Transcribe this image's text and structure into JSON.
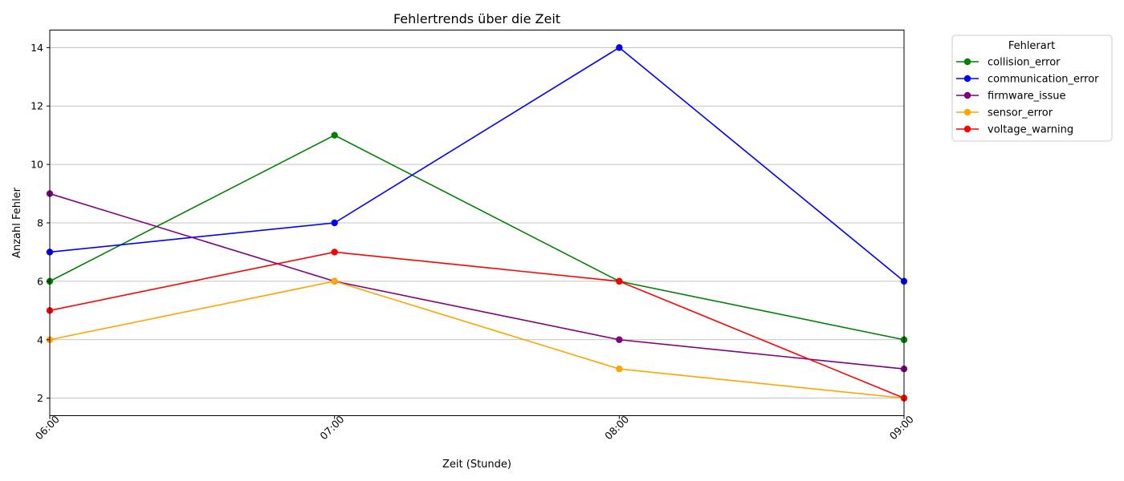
{
  "chart_data": {
    "type": "line",
    "title": "Fehlertrends über die Zeit",
    "xlabel": "Zeit (Stunde)",
    "ylabel": "Anzahl Fehler",
    "categories": [
      "06:00",
      "07:00",
      "08:00",
      "09:00"
    ],
    "ylim": [
      1.4,
      14.6
    ],
    "yticks": [
      2,
      4,
      6,
      8,
      10,
      12,
      14
    ],
    "grid": "horizontal",
    "legend": {
      "title": "Fehlerart",
      "placement": "outside top-right"
    },
    "series": [
      {
        "name": "collision_error",
        "color": "#008000",
        "values": [
          6,
          11,
          6,
          4
        ]
      },
      {
        "name": "communication_error",
        "color": "#0000ff",
        "values": [
          7,
          8,
          14,
          6
        ]
      },
      {
        "name": "firmware_issue",
        "color": "#800080",
        "values": [
          9,
          6,
          4,
          3
        ]
      },
      {
        "name": "sensor_error",
        "color": "#ffa500",
        "values": [
          4,
          6,
          3,
          2
        ]
      },
      {
        "name": "voltage_warning",
        "color": "#ff0000",
        "values": [
          5,
          7,
          6,
          2
        ]
      }
    ]
  }
}
